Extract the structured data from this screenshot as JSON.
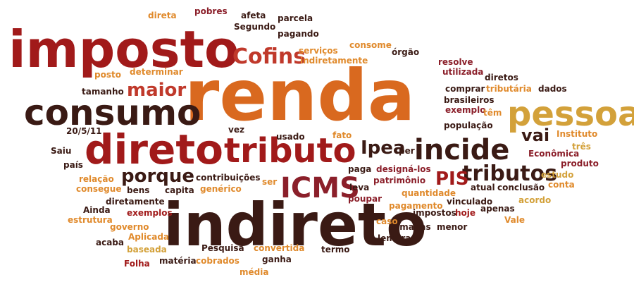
{
  "palette": {
    "dark_maroon": "#3a1a14",
    "crimson": "#a11a1a",
    "red": "#c0392b",
    "orange": "#d9691f",
    "amber": "#e08a2c",
    "gold": "#d3a13a",
    "wine": "#8b1f2a"
  },
  "words": [
    {
      "id": "renda",
      "text": "renda",
      "color": "orange"
    },
    {
      "id": "indireto",
      "text": "indireto",
      "color": "dark_maroon"
    },
    {
      "id": "imposto",
      "text": "imposto",
      "color": "crimson"
    },
    {
      "id": "direto",
      "text": "direto",
      "color": "crimson"
    },
    {
      "id": "consumo",
      "text": "consumo",
      "color": "dark_maroon"
    },
    {
      "id": "tributo",
      "text": "tributo",
      "color": "crimson"
    },
    {
      "id": "pessoa",
      "text": "pessoa",
      "color": "gold"
    },
    {
      "id": "icms",
      "text": "ICMS",
      "color": "wine"
    },
    {
      "id": "incide",
      "text": "incide",
      "color": "dark_maroon"
    },
    {
      "id": "cofins",
      "text": "Cofins",
      "color": "red"
    },
    {
      "id": "tributos",
      "text": "tributos",
      "color": "dark_maroon"
    },
    {
      "id": "maior",
      "text": "maior",
      "color": "red"
    },
    {
      "id": "porque",
      "text": "porque",
      "color": "dark_maroon"
    },
    {
      "id": "ipea",
      "text": "Ipea",
      "color": "dark_maroon"
    },
    {
      "id": "pis",
      "text": "PIS",
      "color": "crimson"
    },
    {
      "id": "vai",
      "text": "vai",
      "color": "dark_maroon"
    },
    {
      "id": "pobres",
      "text": "pobres",
      "color": "wine"
    },
    {
      "id": "afeta",
      "text": "afeta",
      "color": "dark_maroon"
    },
    {
      "id": "direta",
      "text": "direta",
      "color": "amber"
    },
    {
      "id": "parcela",
      "text": "parcela",
      "color": "dark_maroon"
    },
    {
      "id": "segundo",
      "text": "Segundo",
      "color": "dark_maroon"
    },
    {
      "id": "pagando",
      "text": "pagando",
      "color": "dark_maroon"
    },
    {
      "id": "servicos",
      "text": "serviços",
      "color": "amber"
    },
    {
      "id": "consome",
      "text": "consome",
      "color": "amber"
    },
    {
      "id": "indiretamente",
      "text": "indiretamente",
      "color": "amber"
    },
    {
      "id": "orgao",
      "text": "órgão",
      "color": "dark_maroon"
    },
    {
      "id": "resolve",
      "text": "resolve",
      "color": "wine"
    },
    {
      "id": "utilizada",
      "text": "utilizada",
      "color": "wine"
    },
    {
      "id": "diretos",
      "text": "diretos",
      "color": "dark_maroon"
    },
    {
      "id": "tributaria",
      "text": "tributária",
      "color": "amber"
    },
    {
      "id": "dados",
      "text": "dados",
      "color": "dark_maroon"
    },
    {
      "id": "comprar",
      "text": "comprar",
      "color": "dark_maroon"
    },
    {
      "id": "brasileiros",
      "text": "brasileiros",
      "color": "dark_maroon"
    },
    {
      "id": "exemplo",
      "text": "exemplo",
      "color": "wine"
    },
    {
      "id": "tem",
      "text": "têm",
      "color": "amber"
    },
    {
      "id": "populacao",
      "text": "população",
      "color": "dark_maroon"
    },
    {
      "id": "posto",
      "text": "posto",
      "color": "amber"
    },
    {
      "id": "determinar",
      "text": "determinar",
      "color": "amber"
    },
    {
      "id": "tamanho",
      "text": "tamanho",
      "color": "dark_maroon"
    },
    {
      "id": "date",
      "text": "20/5/11",
      "color": "dark_maroon"
    },
    {
      "id": "patrimonio",
      "text": "patrimônio",
      "color": "dark_maroon"
    },
    {
      "id": "vez",
      "text": "vez",
      "color": "dark_maroon"
    },
    {
      "id": "usado",
      "text": "usado",
      "color": "dark_maroon"
    },
    {
      "id": "fato",
      "text": "fato",
      "color": "amber"
    },
    {
      "id": "per",
      "text": "per",
      "color": "dark_maroon"
    },
    {
      "id": "saiu",
      "text": "Saiu",
      "color": "dark_maroon"
    },
    {
      "id": "pais",
      "text": "país",
      "color": "dark_maroon"
    },
    {
      "id": "relacao",
      "text": "relação",
      "color": "amber"
    },
    {
      "id": "consegue",
      "text": "consegue",
      "color": "amber"
    },
    {
      "id": "bens",
      "text": "bens",
      "color": "dark_maroon"
    },
    {
      "id": "capita",
      "text": "capita",
      "color": "dark_maroon"
    },
    {
      "id": "contribuicoes",
      "text": "contribuições",
      "color": "dark_maroon"
    },
    {
      "id": "generico",
      "text": "genérico",
      "color": "amber"
    },
    {
      "id": "ser",
      "text": "ser",
      "color": "amber"
    },
    {
      "id": "paga",
      "text": "paga",
      "color": "dark_maroon"
    },
    {
      "id": "designa",
      "text": "designá-los",
      "color": "wine"
    },
    {
      "id": "patrimonio2",
      "text": "patrimônio",
      "color": "wine"
    },
    {
      "id": "leva",
      "text": "leva",
      "color": "dark_maroon"
    },
    {
      "id": "quantidade",
      "text": "quantidade",
      "color": "amber"
    },
    {
      "id": "poupar",
      "text": "poupar",
      "color": "wine"
    },
    {
      "id": "pagamento",
      "text": "pagamento",
      "color": "amber"
    },
    {
      "id": "atual",
      "text": "atual",
      "color": "dark_maroon"
    },
    {
      "id": "conclusao",
      "text": "conclusão",
      "color": "dark_maroon"
    },
    {
      "id": "conta",
      "text": "conta",
      "color": "amber"
    },
    {
      "id": "instituto",
      "text": "Instituto",
      "color": "amber"
    },
    {
      "id": "tres",
      "text": "três",
      "color": "gold"
    },
    {
      "id": "economica",
      "text": "Econômica",
      "color": "wine"
    },
    {
      "id": "produto",
      "text": "produto",
      "color": "wine"
    },
    {
      "id": "estudo",
      "text": "estudo",
      "color": "gold"
    },
    {
      "id": "ainda",
      "text": "Ainda",
      "color": "dark_maroon"
    },
    {
      "id": "diretamente",
      "text": "diretamente",
      "color": "dark_maroon"
    },
    {
      "id": "estrutura",
      "text": "estrutura",
      "color": "amber"
    },
    {
      "id": "exemplos",
      "text": "exemplos",
      "color": "crimson"
    },
    {
      "id": "governo",
      "text": "governo",
      "color": "amber"
    },
    {
      "id": "acaba",
      "text": "acaba",
      "color": "dark_maroon"
    },
    {
      "id": "aplicada",
      "text": "Aplicada",
      "color": "amber"
    },
    {
      "id": "baseada",
      "text": "baseada",
      "color": "gold"
    },
    {
      "id": "folha",
      "text": "Folha",
      "color": "crimson"
    },
    {
      "id": "materia",
      "text": "matéria",
      "color": "dark_maroon"
    },
    {
      "id": "pesquisa",
      "text": "Pesquisa",
      "color": "dark_maroon"
    },
    {
      "id": "cobrados",
      "text": "cobrados",
      "color": "amber"
    },
    {
      "id": "media",
      "text": "média",
      "color": "amber"
    },
    {
      "id": "ganha",
      "text": "ganha",
      "color": "dark_maroon"
    },
    {
      "id": "convertida",
      "text": "convertida",
      "color": "amber"
    },
    {
      "id": "termo",
      "text": "termo",
      "color": "dark_maroon"
    },
    {
      "id": "caso",
      "text": "caso",
      "color": "amber"
    },
    {
      "id": "camadas",
      "text": "camadas",
      "color": "dark_maroon"
    },
    {
      "id": "lembrar",
      "text": "lembrar",
      "color": "dark_maroon"
    },
    {
      "id": "impostos",
      "text": "impostos",
      "color": "dark_maroon"
    },
    {
      "id": "hoje",
      "text": "hoje",
      "color": "crimson"
    },
    {
      "id": "menor",
      "text": "menor",
      "color": "dark_maroon"
    },
    {
      "id": "vinculado",
      "text": "vinculado",
      "color": "dark_maroon"
    },
    {
      "id": "apenas",
      "text": "apenas",
      "color": "dark_maroon"
    },
    {
      "id": "acordo",
      "text": "acordo",
      "color": "gold"
    },
    {
      "id": "vale",
      "text": "Vale",
      "color": "amber"
    }
  ]
}
